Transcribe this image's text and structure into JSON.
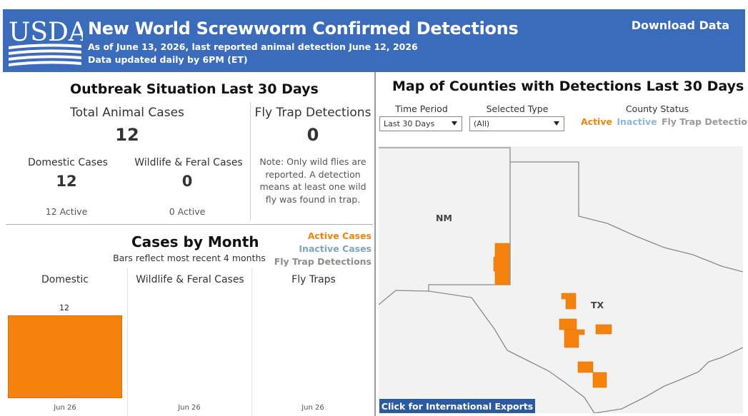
{
  "header": {
    "title": "New World Screwworm Confirmed Detections",
    "subtitle_1": "As of June 13, 2026, last reported animal detection June 12, 2026",
    "subtitle_2": "Data updated daily by 6PM (ET)",
    "download_label": "Download Data",
    "logo_text": "USDA",
    "brand_color": "#3a6cbb"
  },
  "outbreak": {
    "title": "Outbreak Situation Last 30 Days",
    "total_label": "Total Animal Cases",
    "total_value": "12",
    "fly_label": "Fly Trap Detections",
    "fly_value": "0",
    "domestic_label": "Domestic Cases",
    "domestic_value": "12",
    "domestic_active": "12 Active",
    "wildlife_label": "Wildlife & Feral Cases",
    "wildlife_value": "0",
    "wildlife_active": "0 Active",
    "note_lines": [
      "Note: Only wild flies are",
      "reported. A detection",
      "means at least one wild",
      "fly was found in trap."
    ]
  },
  "cases_by_month": {
    "title": "Cases by Month",
    "subtitle": "Bars reflect most recent 4 months",
    "legend": [
      {
        "label": "Active Cases",
        "color": "#f5820d"
      },
      {
        "label": "Inactive Cases",
        "color": "#7aa6c2"
      },
      {
        "label": "Fly Trap Detections",
        "color": "#8c8c8c"
      }
    ],
    "columns": [
      {
        "label": "Domestic",
        "month": "Jun 26"
      },
      {
        "label": "Wildlife & Feral Cases",
        "month": "Jun 26"
      },
      {
        "label": "Fly Traps",
        "month": "Jun 26"
      }
    ]
  },
  "chart_data": {
    "type": "bar",
    "title": "Cases by Month",
    "categories": [
      "Jun 26"
    ],
    "series": [
      {
        "name": "Domestic",
        "values": [
          12
        ]
      },
      {
        "name": "Wildlife & Feral Cases",
        "values": [
          0
        ]
      },
      {
        "name": "Fly Traps",
        "values": [
          0
        ]
      }
    ],
    "data_labels": [
      "12"
    ],
    "ylim": [
      0,
      12
    ]
  },
  "map": {
    "title": "Map of Counties with Detections Last 30 Days",
    "time_period_label": "Time Period",
    "time_period_value": "Last 30 Days",
    "type_label": "Selected Type",
    "type_value": "(All)",
    "status_label": "County Status",
    "status_active": "Active",
    "status_inactive": "Inactive",
    "status_fly": "Fly Trap Detection",
    "state_nm": "NM",
    "state_tx": "TX",
    "export_label": "Click for International Exports",
    "active_color": "#f5820d",
    "inactive_color": "#8fb8d6",
    "fly_color": "#9a9a9a"
  }
}
